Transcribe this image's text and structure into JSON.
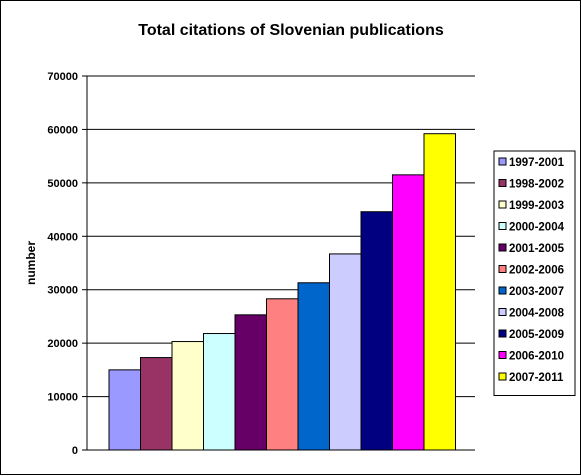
{
  "chart_data": {
    "type": "bar",
    "title": "Total citations of Slovenian publications",
    "xlabel": "",
    "ylabel": "number",
    "ylim": [
      0,
      70000
    ],
    "yticks": [
      0,
      10000,
      20000,
      30000,
      40000,
      50000,
      60000,
      70000
    ],
    "grid": true,
    "legend_position": "right",
    "categories": [
      "1997-2001",
      "1998-2002",
      "1999-2003",
      "2000-2004",
      "2001-2005",
      "2002-2006",
      "2003-2007",
      "2004-2008",
      "2005-2009",
      "2006-2010",
      "2007-2011"
    ],
    "values": [
      15000,
      17300,
      20300,
      21800,
      25300,
      28300,
      31300,
      36700,
      44600,
      51500,
      59200
    ],
    "colors": [
      "#9999ff",
      "#993366",
      "#ffffcc",
      "#ccffff",
      "#660066",
      "#ff8080",
      "#0066cc",
      "#ccccff",
      "#000080",
      "#ff00ff",
      "#ffff00"
    ]
  }
}
